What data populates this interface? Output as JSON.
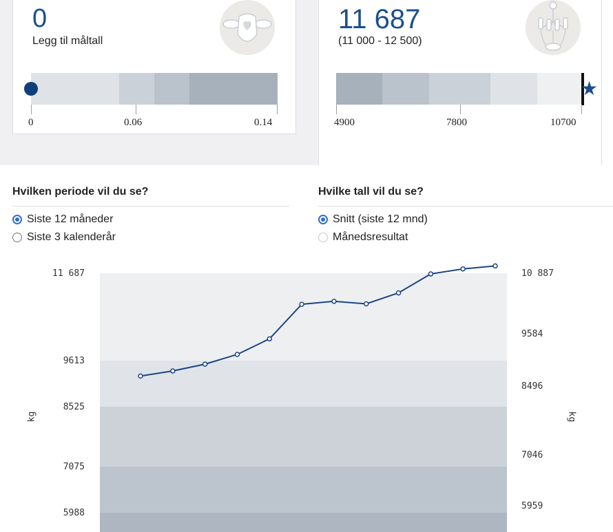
{
  "card_left": {
    "value": "0",
    "caption": "Legg til måltall",
    "icon": "sheep-heart-icon",
    "scale_ticks": [
      "0",
      "0.06",
      "0.14"
    ],
    "marker_value": 0,
    "marker_color": "#0f3f7a",
    "segments": [
      {
        "to": 0.05,
        "color": "#dfe3e7"
      },
      {
        "to": 0.07,
        "color": "#cbd1d8"
      },
      {
        "to": 0.09,
        "color": "#bac2cb"
      },
      {
        "to": 0.14,
        "color": "#a7b1bc"
      }
    ]
  },
  "card_right": {
    "value": "11 687",
    "range_text": "(11 000 - 12 500)",
    "icon": "milking-cluster-icon",
    "scale_ticks": [
      "4900",
      "7800",
      "10700"
    ],
    "marker": "star-icon",
    "marker_color": "#1b4f8c",
    "segments": [
      {
        "color": "#a7b1bc"
      },
      {
        "color": "#bac2cb"
      },
      {
        "color": "#cbd1d8"
      },
      {
        "color": "#dfe3e7"
      },
      {
        "color": "#eef0f2"
      }
    ]
  },
  "period": {
    "question": "Hvilken periode vil du se?",
    "options": [
      {
        "label": "Siste 12 måneder",
        "selected": true
      },
      {
        "label": "Siste 3 kalenderår",
        "selected": false
      }
    ]
  },
  "figures": {
    "question": "Hvilke tall vil du se?",
    "options": [
      {
        "label": "Snitt (siste 12 mnd)",
        "selected": true
      },
      {
        "label": "Månedsresultat",
        "selected": false
      }
    ]
  },
  "chart_data": {
    "type": "line",
    "ylabel_left": "kg",
    "ylabel_right": "kg",
    "left_ticks": [
      "11 687",
      "9613",
      "8525",
      "7075",
      "5988"
    ],
    "right_ticks": [
      "10 887",
      "9584",
      "8496",
      "7046",
      "5959"
    ],
    "bands": [
      {
        "from": 9613,
        "to": 11687,
        "color": "#eeeff1"
      },
      {
        "from": 8525,
        "to": 9613,
        "color": "#e0e4e8"
      },
      {
        "from": 7075,
        "to": 8525,
        "color": "#ccd2d8"
      },
      {
        "from": 5988,
        "to": 7075,
        "color": "#bcc5cd"
      },
      {
        "from": 5500,
        "to": 5988,
        "color": "#aeb7c1"
      }
    ],
    "series": [
      {
        "color": "#1b4585",
        "values": [
          9250,
          9370,
          9530,
          9760,
          10130,
          10950,
          11020,
          10960,
          11220,
          11670,
          11790,
          11860
        ]
      }
    ]
  }
}
